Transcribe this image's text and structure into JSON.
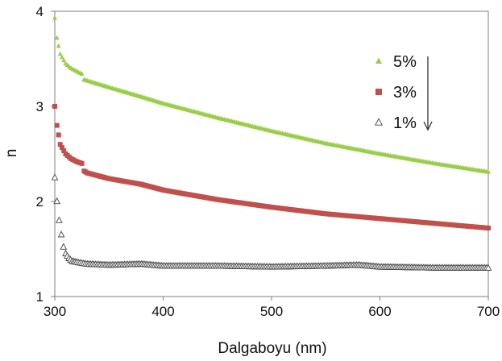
{
  "chart_data": {
    "type": "scatter",
    "title": "",
    "xlabel": "Dalgaboyu (nm)",
    "ylabel": "n",
    "xlim": [
      300,
      700
    ],
    "ylim": [
      1,
      4
    ],
    "x_ticks": [
      "300",
      "400",
      "500",
      "600",
      "700"
    ],
    "y_ticks": [
      "1",
      "2",
      "3",
      "4"
    ],
    "grid": false,
    "legend_position": "top-right",
    "legend_arrow": "down",
    "series": [
      {
        "name": "5%",
        "marker": "triangle-filled",
        "color": "#9acd4a",
        "x": [
          300,
          302,
          305,
          310,
          315,
          320,
          325,
          327,
          330,
          350,
          380,
          400,
          450,
          500,
          550,
          600,
          650,
          700
        ],
        "y": [
          3.93,
          3.72,
          3.55,
          3.45,
          3.4,
          3.37,
          3.34,
          3.28,
          3.27,
          3.2,
          3.1,
          3.03,
          2.88,
          2.74,
          2.61,
          2.5,
          2.4,
          2.31
        ]
      },
      {
        "name": "3%",
        "marker": "square-filled",
        "color": "#c0504d",
        "x": [
          300,
          302,
          305,
          310,
          315,
          320,
          325,
          327,
          330,
          350,
          380,
          400,
          450,
          500,
          550,
          600,
          650,
          700
        ],
        "y": [
          3.0,
          2.8,
          2.6,
          2.5,
          2.45,
          2.42,
          2.4,
          2.32,
          2.3,
          2.24,
          2.18,
          2.12,
          2.02,
          1.94,
          1.87,
          1.82,
          1.77,
          1.72
        ]
      },
      {
        "name": "1%",
        "marker": "triangle-open",
        "color": "#444444",
        "x": [
          300,
          302,
          304,
          306,
          308,
          310,
          313,
          316,
          320,
          325,
          330,
          350,
          380,
          400,
          450,
          500,
          550,
          580,
          600,
          650,
          700
        ],
        "y": [
          2.25,
          2.0,
          1.8,
          1.65,
          1.52,
          1.45,
          1.4,
          1.37,
          1.36,
          1.35,
          1.34,
          1.33,
          1.34,
          1.32,
          1.32,
          1.31,
          1.32,
          1.33,
          1.31,
          1.3,
          1.3
        ]
      }
    ]
  }
}
